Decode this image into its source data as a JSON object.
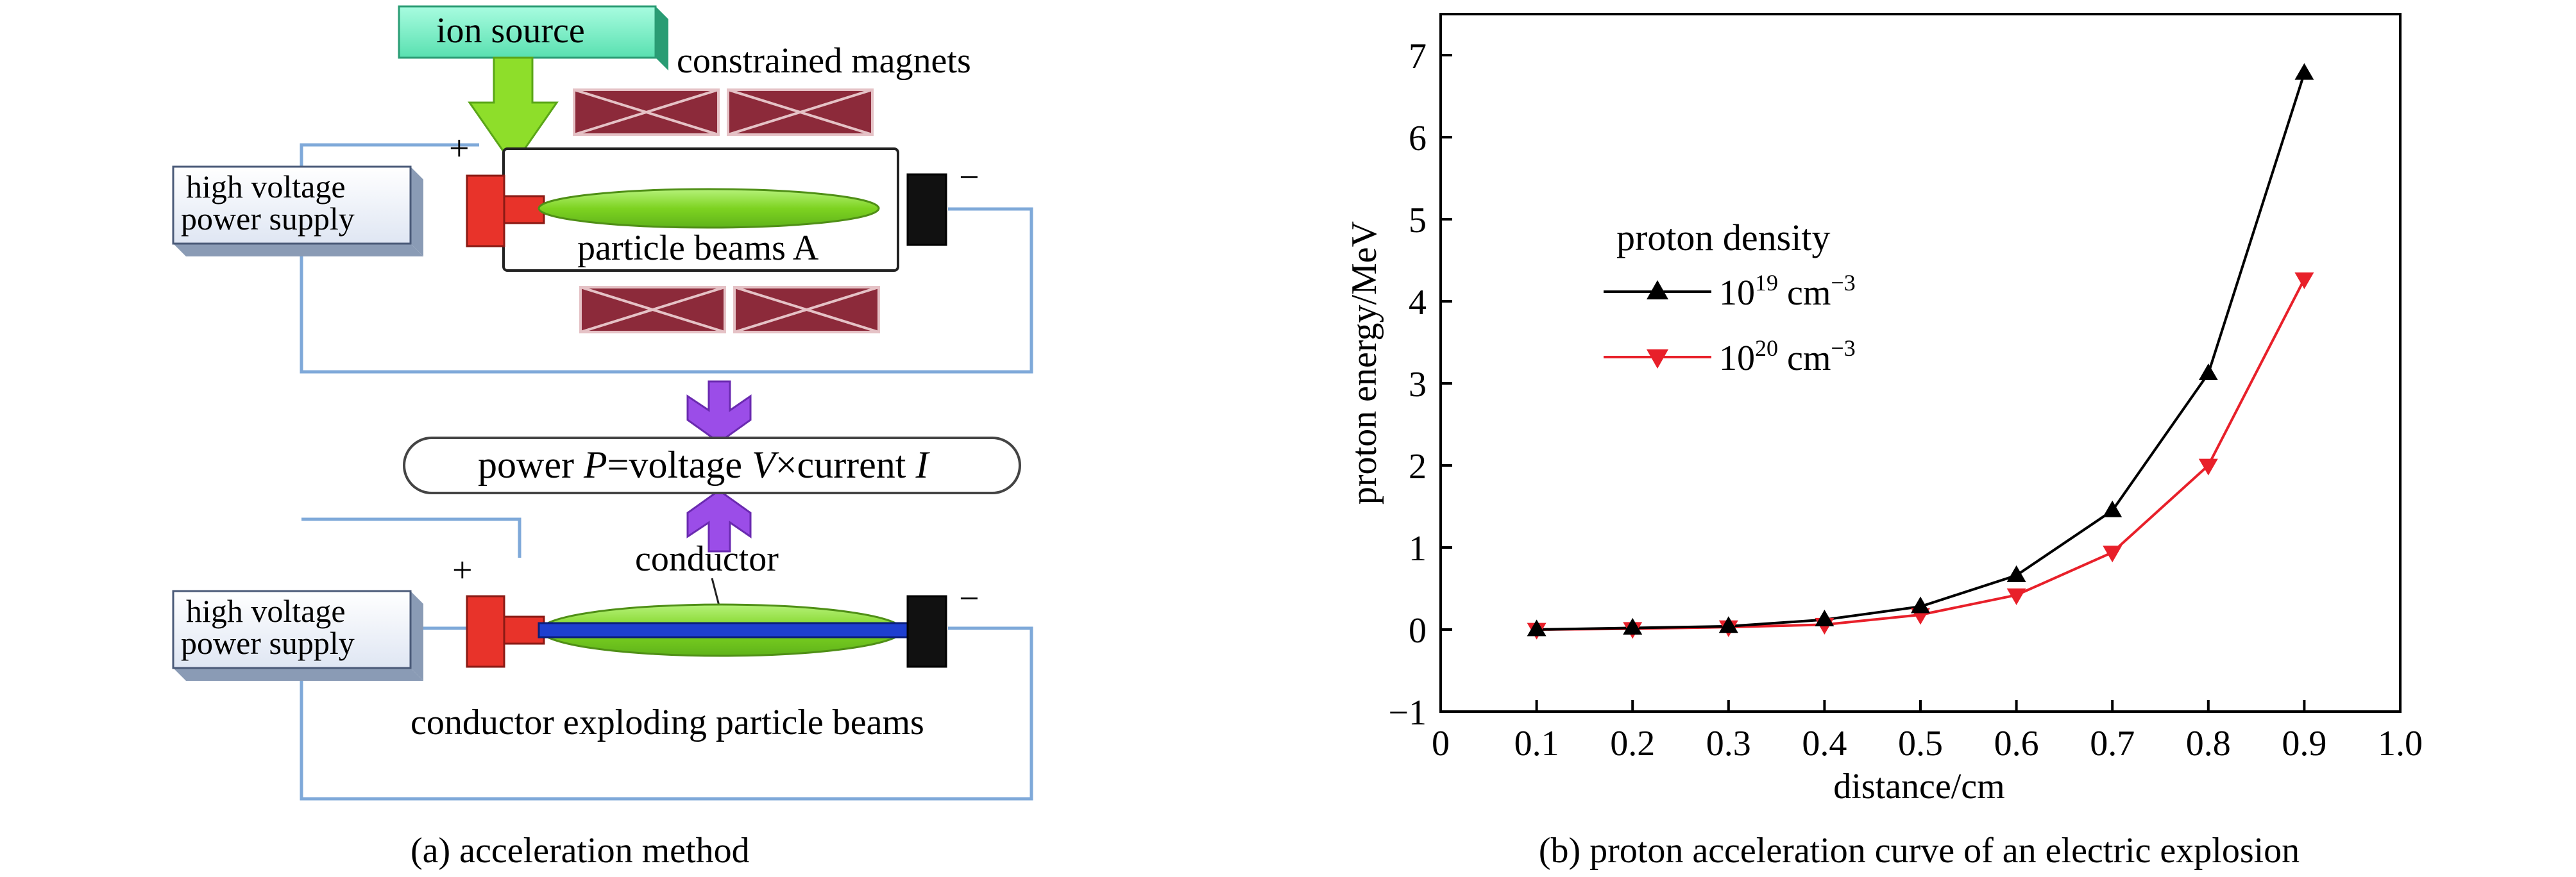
{
  "panel_a": {
    "ion_source": "ion source",
    "constrained_magnets": "constrained magnets",
    "hv_supply_line1": "high voltage",
    "hv_supply_line2": "power supply",
    "particle_beams_a": "particle beams A",
    "plus": "+",
    "minus": "−",
    "power_prefix": "power ",
    "power_P": "P",
    "power_eq_voltage": "=voltage ",
    "power_V": "V",
    "power_times_current": "×current ",
    "power_I": "I",
    "conductor": "conductor",
    "conductor_exploding": "conductor exploding particle beams",
    "caption": "(a) acceleration method",
    "colors": {
      "ion_source_fill": "#7ff0cc",
      "arrow_green": "#8ede2a",
      "magnet_fill": "#8c2a3a",
      "beam_fill": "#8ede2a",
      "electrode_red": "#e8332a",
      "electrode_black": "#111111",
      "wire": "#7fa9d9",
      "purple_arrow": "#9b4de8",
      "conductor_rod": "#1e3fd0"
    }
  },
  "chart_data": {
    "type": "line",
    "caption": "(b) proton acceleration curve of an electric explosion",
    "xlabel": "distance/cm",
    "ylabel": "proton energy/MeV",
    "xlim": [
      0,
      1.0
    ],
    "ylim": [
      -1,
      7.5
    ],
    "xticks": [
      "0",
      "0.1",
      "0.2",
      "0.3",
      "0.4",
      "0.5",
      "0.6",
      "0.7",
      "0.8",
      "0.9",
      "1.0"
    ],
    "yticks": [
      "−1",
      "0",
      "1",
      "2",
      "3",
      "4",
      "5",
      "6",
      "7"
    ],
    "xtick_values": [
      0,
      0.1,
      0.2,
      0.3,
      0.4,
      0.5,
      0.6,
      0.7,
      0.8,
      0.9,
      1.0
    ],
    "ytick_values": [
      -1,
      0,
      1,
      2,
      3,
      4,
      5,
      6,
      7
    ],
    "legend": {
      "title": "proton density",
      "placement": "upper-left",
      "entries": [
        {
          "base": "10",
          "exp": "19",
          "unit": " cm",
          "unit_exp": "−3"
        },
        {
          "base": "10",
          "exp": "20",
          "unit": " cm",
          "unit_exp": "−3"
        }
      ]
    },
    "grid": false,
    "x": [
      0.1,
      0.2,
      0.3,
      0.4,
      0.5,
      0.6,
      0.7,
      0.8,
      0.9
    ],
    "series": [
      {
        "marker": "triangle-up",
        "color": "#000000",
        "values": [
          0.0,
          0.02,
          0.04,
          0.12,
          0.28,
          0.66,
          1.45,
          3.12,
          6.78
        ]
      },
      {
        "marker": "triangle-down",
        "color": "#e8202a",
        "values": [
          0.0,
          0.01,
          0.03,
          0.06,
          0.18,
          0.42,
          0.94,
          2.0,
          4.27
        ]
      }
    ]
  }
}
